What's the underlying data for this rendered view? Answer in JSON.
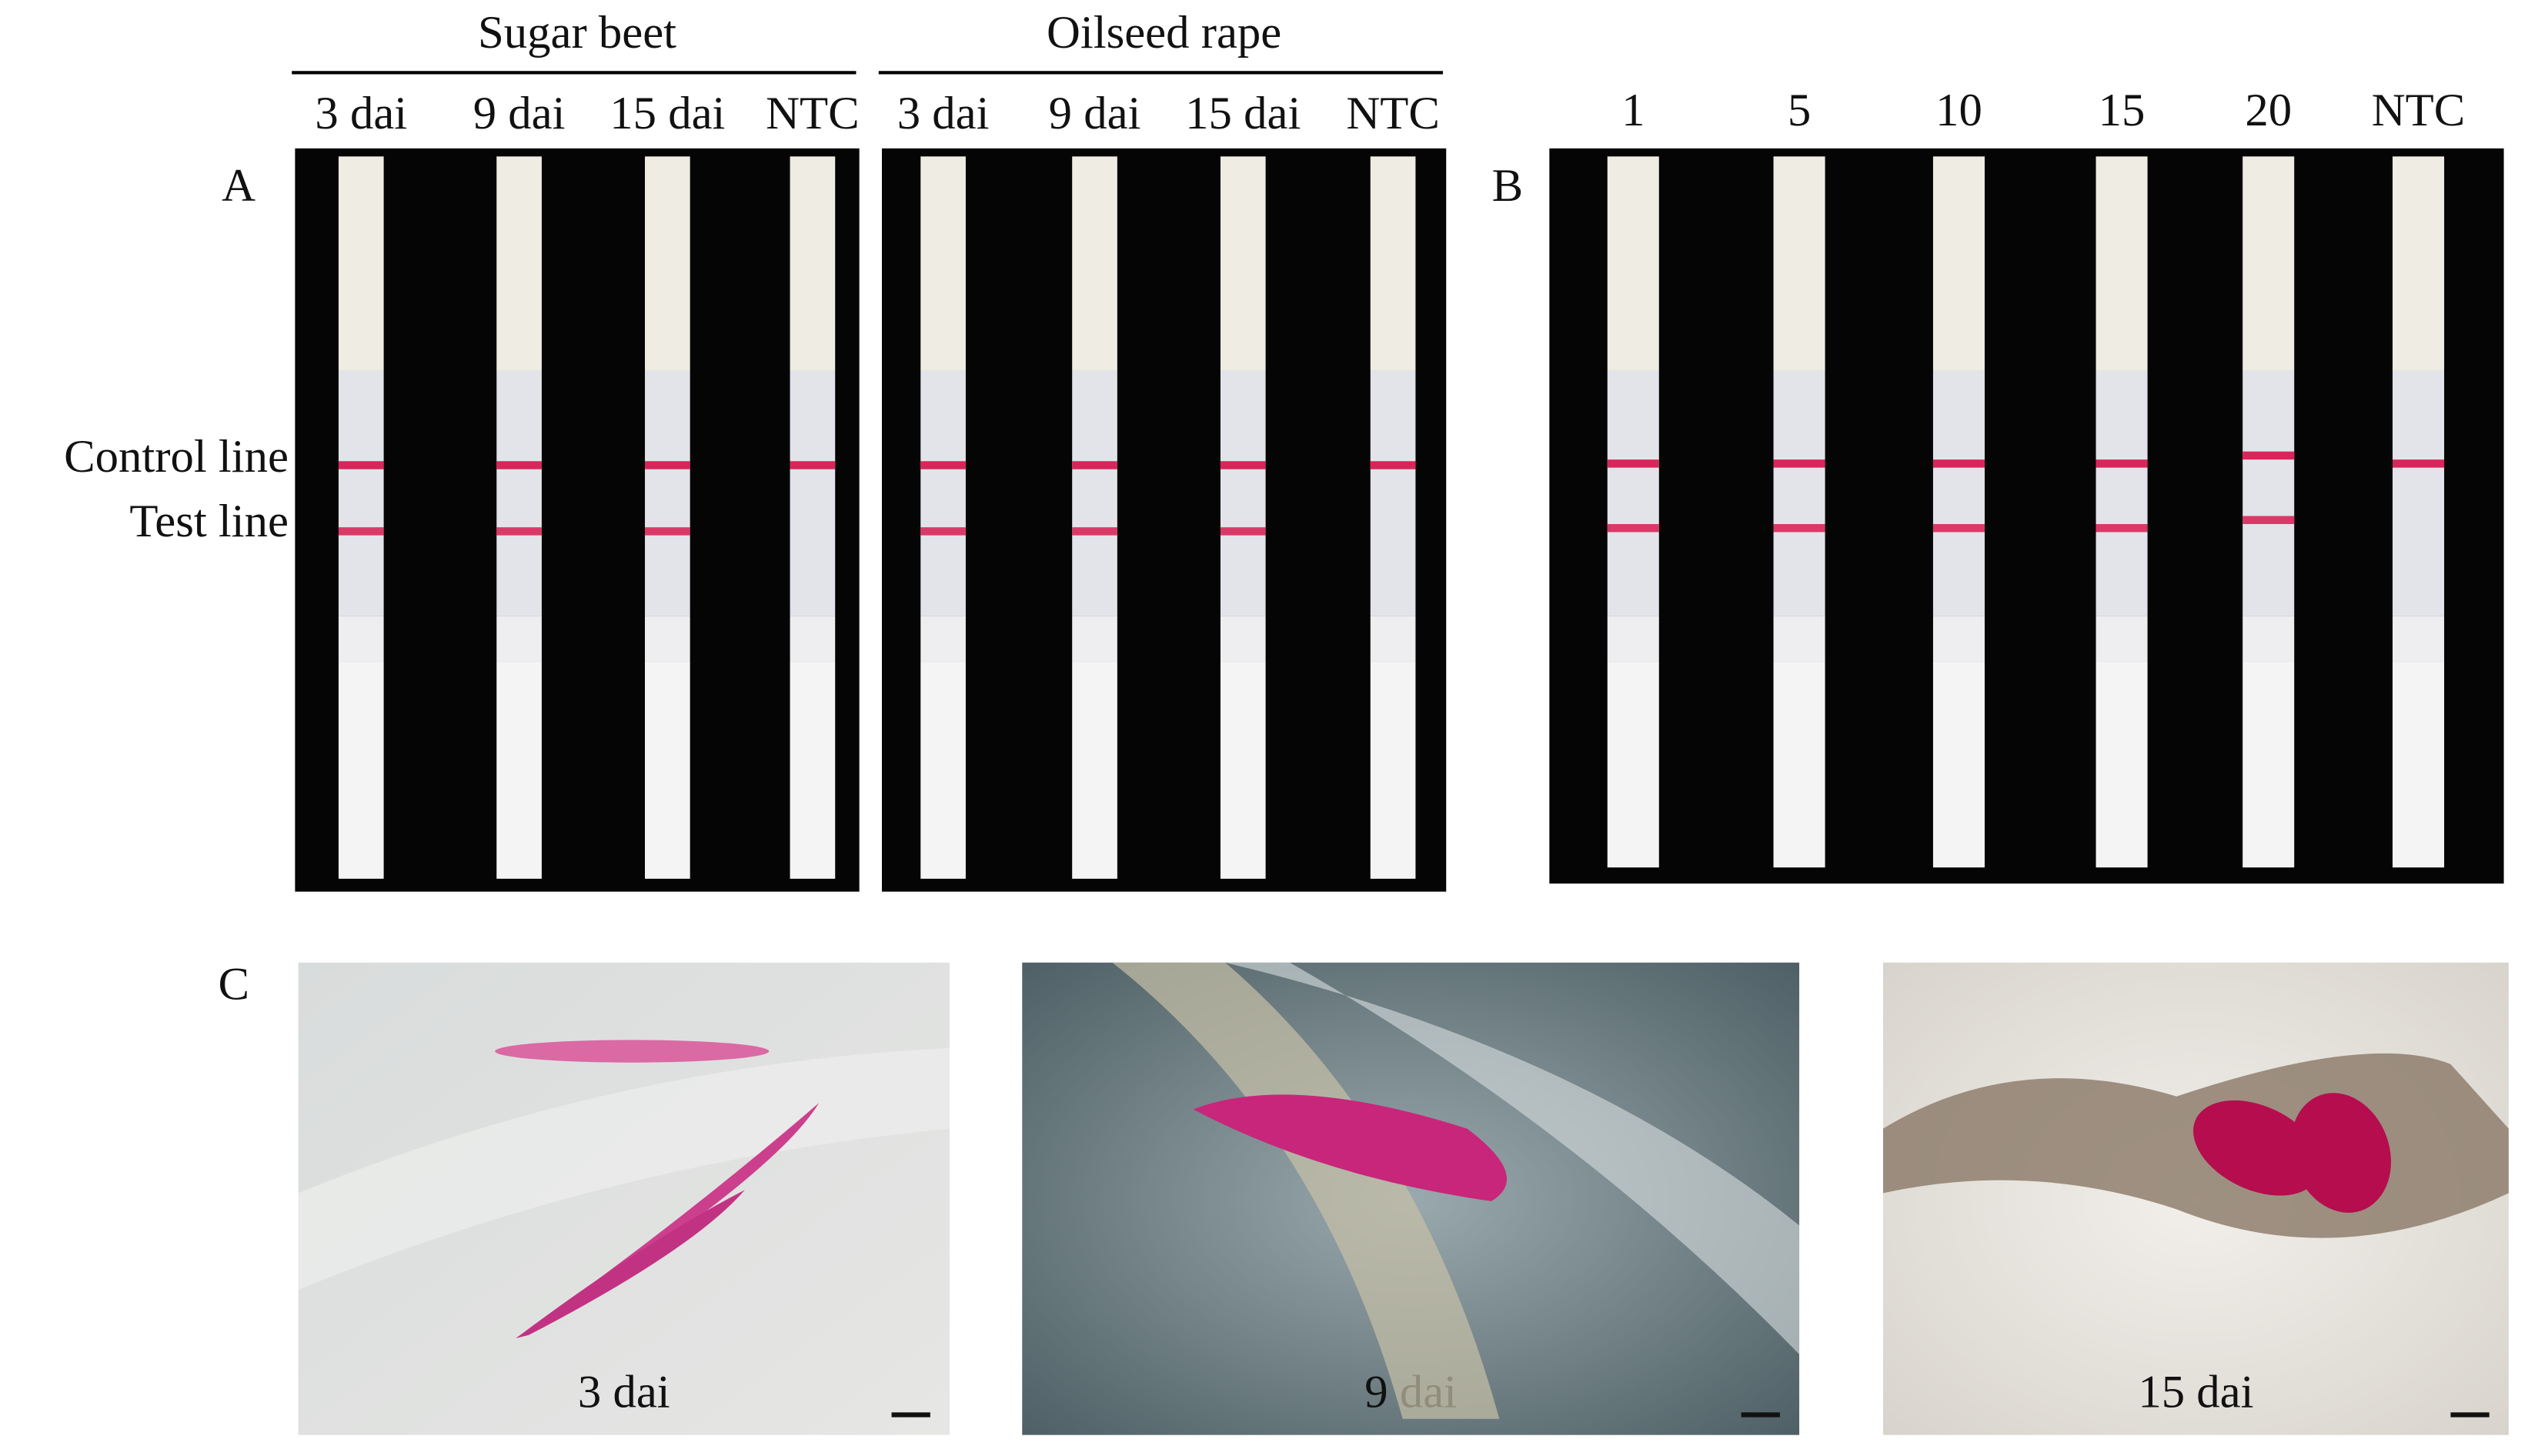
{
  "panel_a": {
    "label": "A",
    "groups": [
      {
        "title": "Sugar beet",
        "lanes": [
          "3 dai",
          "9 dai",
          "15 dai",
          "NTC"
        ]
      },
      {
        "title": "Oilseed rape",
        "lanes": [
          "3 dai",
          "9 dai",
          "15 dai",
          "NTC"
        ]
      }
    ],
    "line_labels": {
      "control": "Control line",
      "test": "Test line"
    }
  },
  "panel_b": {
    "label": "B",
    "lanes": [
      "1",
      "5",
      "10",
      "15",
      "20",
      "NTC"
    ]
  },
  "panel_c": {
    "label": "C",
    "images": [
      {
        "caption": "3 dai"
      },
      {
        "caption": "9 dai"
      },
      {
        "caption": "15 dai"
      }
    ]
  }
}
